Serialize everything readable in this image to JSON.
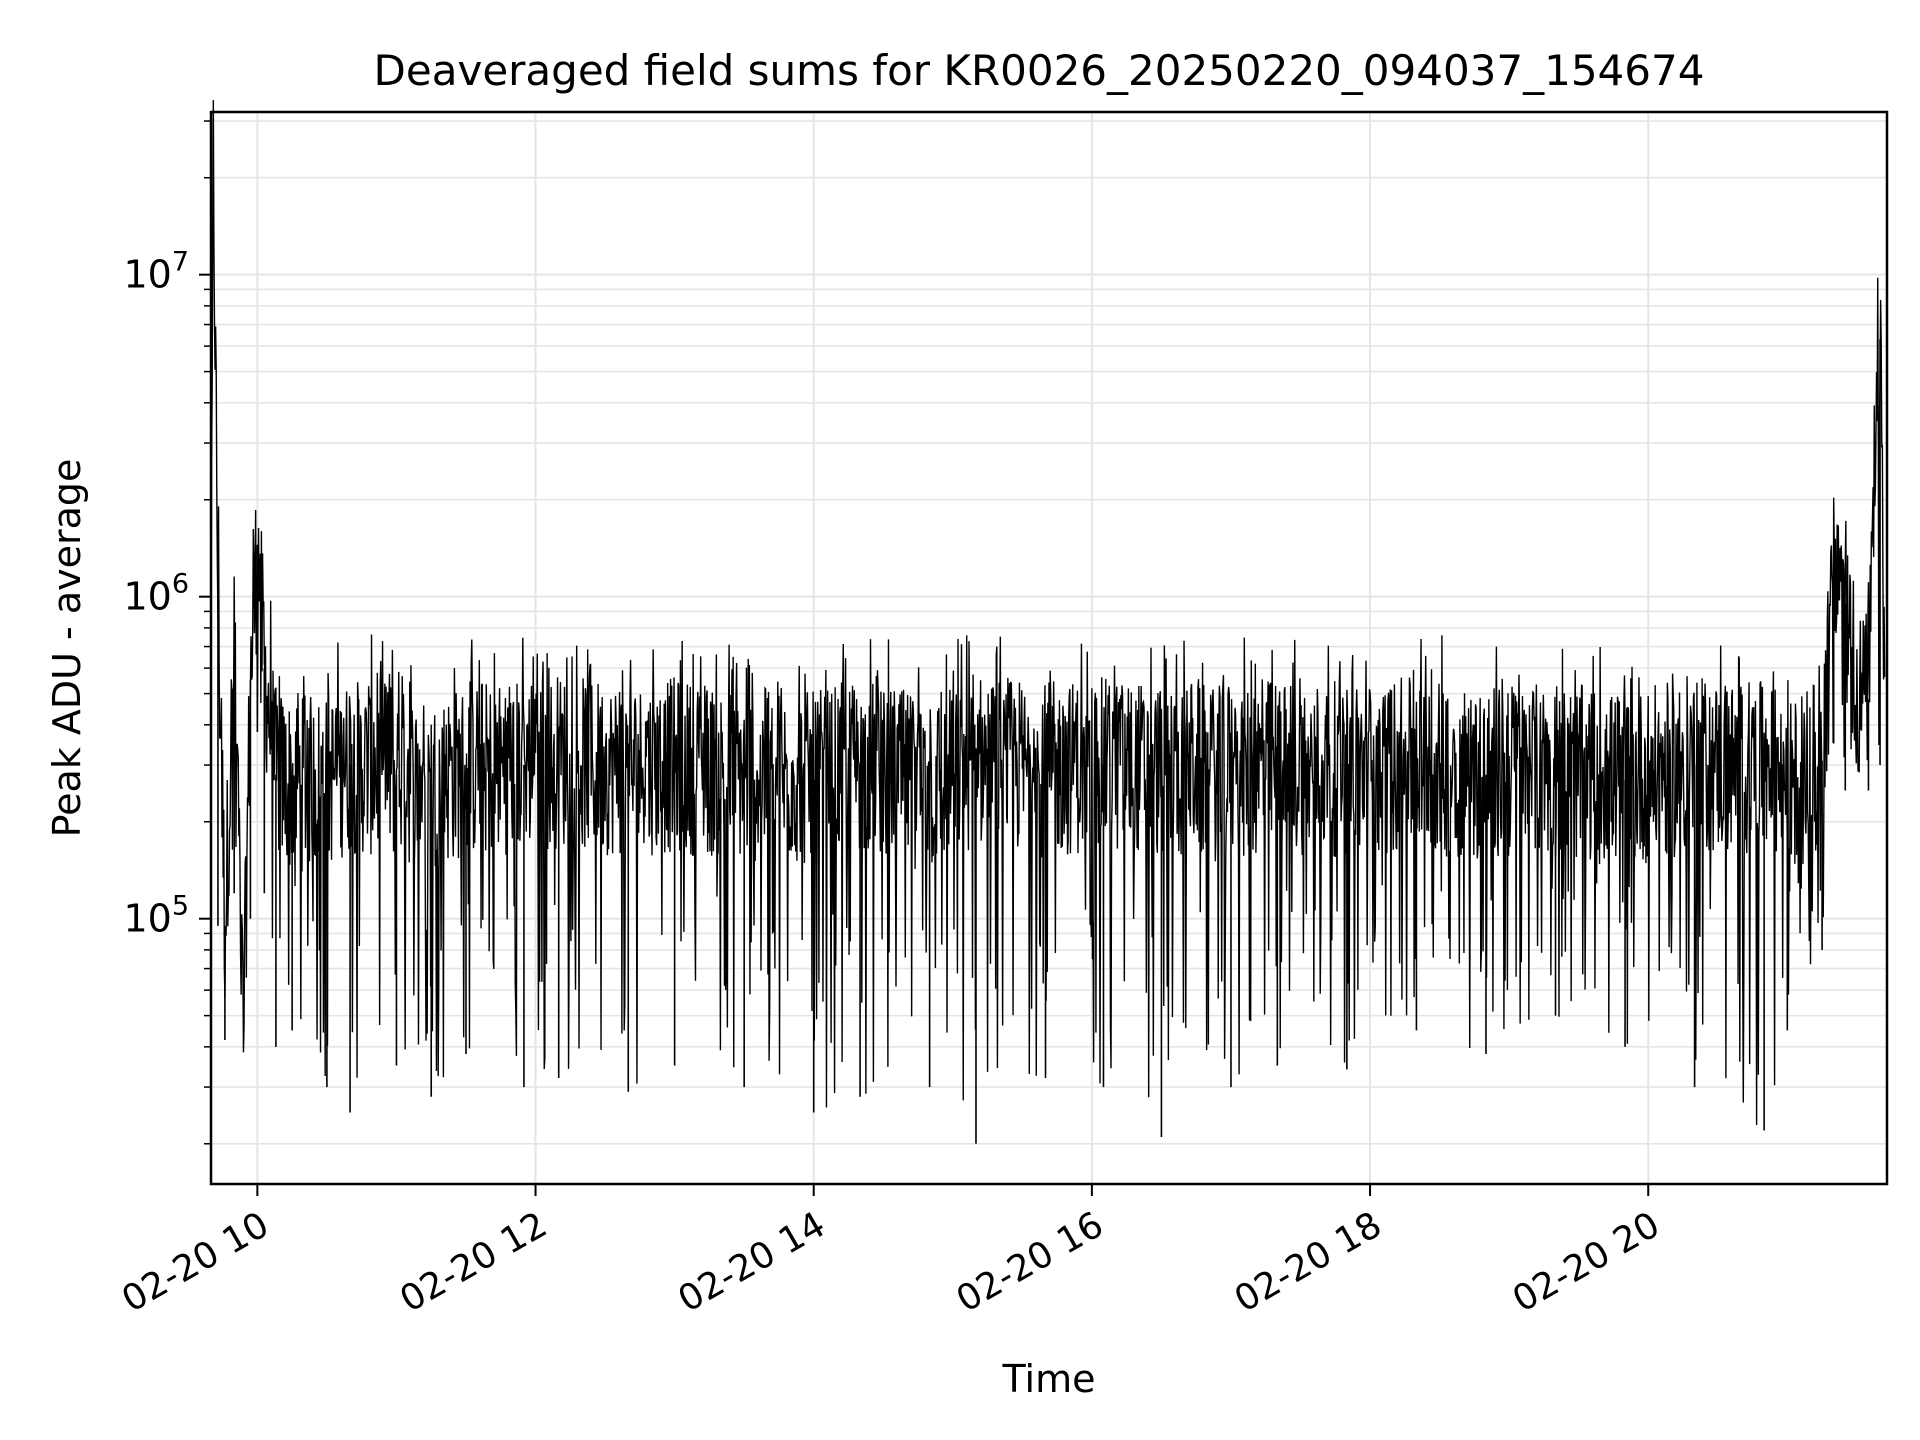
{
  "chart_data": {
    "type": "line",
    "title": "Deaveraged field sums for KR0026_20250220_094037_154674",
    "xlabel": "Time",
    "ylabel": "Peak ADU - average",
    "yscale": "log",
    "ylim": [
      15000,
      32000000
    ],
    "xlim": [
      "02-20 09:40",
      "02-20 21:43"
    ],
    "x_tick_labels": [
      "02-20 10",
      "02-20 12",
      "02-20 14",
      "02-20 16",
      "02-20 18",
      "02-20 20"
    ],
    "y_tick_labels": [
      {
        "base": "10",
        "exp": "5"
      },
      {
        "base": "10",
        "exp": "6"
      },
      {
        "base": "10",
        "exp": "7"
      }
    ],
    "grid": true,
    "line_color": "#000000",
    "grid_color": "#e5e5e5",
    "series": [
      {
        "x": [
          "02-20 09:40",
          "02-20 09:41",
          "02-20 09:43",
          "02-20 09:46",
          "02-20 09:50",
          "02-20 09:54",
          "02-20 09:57",
          "02-20 10:00",
          "02-20 10:03",
          "02-20 10:08",
          "02-20 10:15",
          "02-20 10:30",
          "02-20 10:40",
          "02-20 11:00",
          "02-20 11:15",
          "02-20 11:30",
          "02-20 11:55",
          "02-20 12:10",
          "02-20 12:40",
          "02-20 13:00",
          "02-20 13:30",
          "02-20 14:00",
          "02-20 14:20",
          "02-20 14:50",
          "02-20 15:10",
          "02-20 15:40",
          "02-20 16:05",
          "02-20 16:30",
          "02-20 17:00",
          "02-20 17:20",
          "02-20 17:50",
          "02-20 18:20",
          "02-20 18:50",
          "02-20 19:20",
          "02-20 19:50",
          "02-20 20:20",
          "02-20 20:50",
          "02-20 21:00",
          "02-20 21:15",
          "02-20 21:20",
          "02-20 21:25",
          "02-20 21:30",
          "02-20 21:35",
          "02-20 21:40",
          "02-20 21:42"
        ],
        "y": [
          550000,
          23000000,
          1000000,
          95000,
          650000,
          42000,
          550000,
          1450000,
          600000,
          280000,
          260000,
          270000,
          300000,
          280000,
          260000,
          290000,
          300000,
          310000,
          290000,
          300000,
          280000,
          270000,
          300000,
          260000,
          310000,
          290000,
          300000,
          290000,
          280000,
          300000,
          290000,
          300000,
          280000,
          290000,
          270000,
          300000,
          290000,
          250000,
          310000,
          1100000,
          950000,
          500000,
          480000,
          6300000,
          520000
        ],
        "y_min": [
          550000,
          23000000,
          95000,
          42000,
          120000,
          42000,
          100000,
          380000,
          120000,
          40000,
          45000,
          30000,
          25000,
          35000,
          28000,
          38000,
          30000,
          32000,
          29000,
          35000,
          30000,
          25000,
          28000,
          30000,
          20000,
          32000,
          30000,
          21000,
          30000,
          35000,
          34000,
          45000,
          38000,
          50000,
          40000,
          30000,
          22000,
          45000,
          80000,
          350000,
          250000,
          320000,
          250000,
          300000,
          520000
        ]
      }
    ]
  }
}
